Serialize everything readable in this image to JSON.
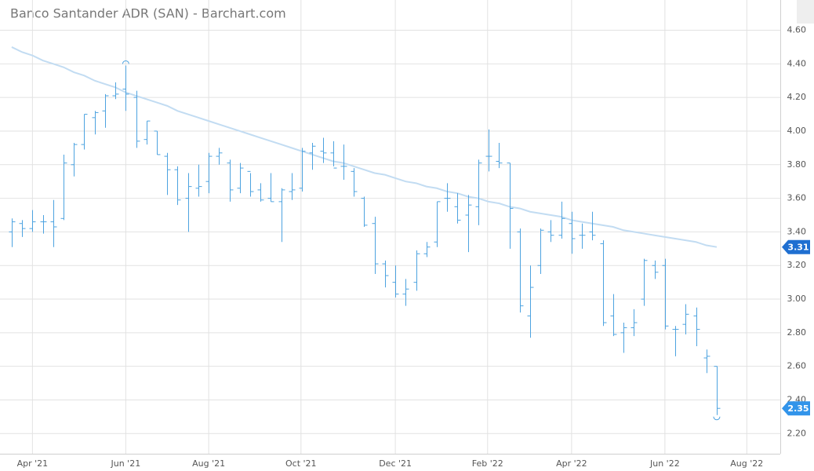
{
  "chart_data": {
    "type": "ohlc",
    "title": "Banco Santander ADR (SAN) - Barchart.com",
    "categories": [
      null,
      null,
      null,
      null,
      null,
      null,
      null,
      null,
      null,
      null,
      null,
      null,
      null,
      null,
      null,
      null,
      null,
      null,
      null,
      null,
      null,
      null,
      null,
      null,
      null,
      null,
      null,
      null,
      null,
      null,
      null,
      null,
      null,
      null,
      null,
      null,
      null,
      null,
      null,
      null,
      null,
      null,
      null,
      null,
      null,
      null,
      null,
      null,
      null,
      null,
      null,
      null,
      null,
      null,
      null,
      null,
      null,
      null,
      null,
      null,
      null,
      null,
      null,
      null,
      null,
      null,
      null,
      null,
      null
    ],
    "open": [
      3.4,
      3.45,
      3.42,
      3.46,
      3.46,
      3.48,
      3.8,
      3.92,
      4.08,
      4.12,
      4.21,
      4.25,
      4.2,
      3.95,
      4.0,
      3.85,
      3.77,
      3.6,
      3.66,
      3.7,
      3.85,
      3.81,
      3.66,
      3.76,
      3.65,
      3.6,
      3.58,
      3.64,
      3.66,
      3.87,
      3.88,
      3.87,
      3.79,
      3.76,
      3.6,
      3.45,
      3.21,
      3.1,
      3.03,
      3.1,
      3.27,
      3.34,
      3.6,
      3.55,
      3.5,
      3.55,
      3.85,
      3.82,
      3.81,
      3.4,
      2.9,
      3.2,
      3.4,
      3.38,
      3.45,
      3.38,
      3.4,
      3.33,
      2.9,
      2.8,
      2.83,
      3.0,
      3.2,
      3.2,
      2.82,
      2.85,
      2.9,
      2.65,
      2.6
    ],
    "high": [
      3.48,
      3.47,
      3.53,
      3.5,
      3.59,
      3.86,
      3.93,
      4.1,
      4.12,
      4.22,
      4.29,
      4.39,
      4.24,
      4.06,
      4.0,
      3.87,
      3.79,
      3.75,
      3.8,
      3.87,
      3.9,
      3.83,
      3.81,
      3.75,
      3.69,
      3.75,
      3.66,
      3.75,
      3.9,
      3.93,
      3.96,
      3.94,
      3.92,
      3.78,
      3.61,
      3.49,
      3.23,
      3.2,
      3.12,
      3.29,
      3.34,
      3.58,
      3.69,
      3.63,
      3.62,
      3.83,
      4.01,
      3.93,
      3.81,
      3.42,
      3.2,
      3.42,
      3.47,
      3.58,
      3.52,
      3.45,
      3.52,
      3.35,
      3.03,
      2.86,
      2.94,
      3.24,
      3.23,
      3.24,
      2.84,
      2.97,
      2.95,
      2.7,
      2.6
    ],
    "low": [
      3.31,
      3.37,
      3.4,
      3.39,
      3.31,
      3.47,
      3.73,
      3.89,
      3.98,
      4.02,
      4.19,
      4.12,
      3.9,
      3.92,
      3.86,
      3.62,
      3.56,
      3.4,
      3.61,
      3.63,
      3.8,
      3.58,
      3.63,
      3.61,
      3.58,
      3.58,
      3.34,
      3.59,
      3.64,
      3.77,
      3.81,
      3.79,
      3.71,
      3.61,
      3.43,
      3.15,
      3.07,
      3.01,
      2.96,
      3.05,
      3.25,
      3.31,
      3.52,
      3.45,
      3.28,
      3.44,
      3.76,
      3.78,
      3.3,
      2.92,
      2.77,
      3.15,
      3.34,
      3.36,
      3.27,
      3.3,
      3.35,
      2.84,
      2.78,
      2.68,
      2.78,
      2.96,
      3.12,
      2.82,
      2.66,
      2.79,
      2.72,
      2.56,
      2.31
    ],
    "close": [
      3.46,
      3.42,
      3.46,
      3.46,
      3.43,
      3.81,
      3.92,
      4.1,
      4.11,
      4.21,
      4.22,
      4.22,
      3.94,
      4.06,
      3.86,
      3.77,
      3.59,
      3.67,
      3.67,
      3.85,
      3.87,
      3.65,
      3.78,
      3.64,
      3.59,
      3.58,
      3.65,
      3.65,
      3.88,
      3.91,
      3.87,
      3.78,
      3.79,
      3.64,
      3.44,
      3.21,
      3.14,
      3.03,
      3.06,
      3.27,
      3.31,
      3.58,
      3.6,
      3.47,
      3.56,
      3.81,
      3.85,
      3.81,
      3.54,
      2.96,
      3.07,
      3.41,
      3.38,
      3.48,
      3.36,
      3.38,
      3.38,
      2.86,
      2.79,
      2.83,
      2.86,
      3.23,
      3.16,
      2.84,
      2.82,
      2.91,
      2.82,
      2.66,
      2.35
    ],
    "color": "#4da3e0",
    "trendline": {
      "color": "#c2dcf2",
      "values": [
        4.5,
        4.47,
        4.45,
        4.42,
        4.4,
        4.38,
        4.35,
        4.33,
        4.3,
        4.28,
        4.26,
        4.23,
        4.21,
        4.19,
        4.17,
        4.15,
        4.12,
        4.1,
        4.08,
        4.06,
        4.04,
        4.02,
        4.0,
        3.98,
        3.96,
        3.94,
        3.92,
        3.9,
        3.88,
        3.86,
        3.84,
        3.82,
        3.81,
        3.79,
        3.77,
        3.75,
        3.74,
        3.72,
        3.7,
        3.69,
        3.67,
        3.66,
        3.64,
        3.63,
        3.61,
        3.6,
        3.58,
        3.57,
        3.55,
        3.54,
        3.52,
        3.51,
        3.5,
        3.49,
        3.47,
        3.46,
        3.45,
        3.44,
        3.43,
        3.41,
        3.4,
        3.39,
        3.38,
        3.37,
        3.36,
        3.35,
        3.34,
        3.32,
        3.31
      ],
      "badge_color": "#1f6fd1"
    },
    "close_badge_color": "#3294ea",
    "xlim": [
      -1.13,
      74.13
    ],
    "xticks": [
      {
        "value": 2.0,
        "label": "Apr '21"
      },
      {
        "value": 11.0,
        "label": "Jun '21"
      },
      {
        "value": 19.0,
        "label": "Aug '21"
      },
      {
        "value": 27.9,
        "label": "Oct '21"
      },
      {
        "value": 37.0,
        "label": "Dec '21"
      },
      {
        "value": 45.9,
        "label": "Feb '22"
      },
      {
        "value": 54.0,
        "label": "Apr '22"
      },
      {
        "value": 63.0,
        "label": "Jun '22"
      },
      {
        "value": 70.9,
        "label": "Aug '22"
      }
    ],
    "ylim": [
      2.08,
      4.78
    ],
    "yticks": [
      {
        "value": 2.2,
        "label": "2.20"
      },
      {
        "value": 2.4,
        "label": "2.40"
      },
      {
        "value": 2.6,
        "label": "2.60"
      },
      {
        "value": 2.8,
        "label": "2.80"
      },
      {
        "value": 3.0,
        "label": "3.00"
      },
      {
        "value": 3.2,
        "label": "3.20"
      },
      {
        "value": 3.4,
        "label": "3.40"
      },
      {
        "value": 3.6,
        "label": "3.60"
      },
      {
        "value": 3.8,
        "label": "3.80"
      },
      {
        "value": 4.0,
        "label": "4.00"
      },
      {
        "value": 4.2,
        "label": "4.20"
      },
      {
        "value": 4.4,
        "label": "4.40"
      },
      {
        "value": 4.6,
        "label": "4.60"
      }
    ],
    "grid": true
  }
}
